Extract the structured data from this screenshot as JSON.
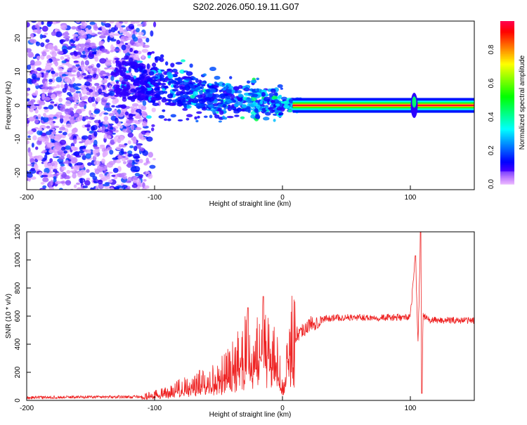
{
  "chart_data": [
    {
      "type": "heatmap",
      "title": "S202.2026.050.19.11.G07",
      "xlabel": "Height of straight line (km)",
      "ylabel": "Frequency (Hz)",
      "xlim": [
        -200,
        150
      ],
      "ylim": [
        -25,
        25
      ],
      "xticks": [
        "-200",
        "-100",
        "0",
        "100"
      ],
      "yticks": [
        "20",
        "10",
        "0",
        "-10",
        "-20"
      ],
      "colorbar": {
        "label": "Normalized spectral amplitude",
        "range": [
          0,
          1
        ],
        "ticks": [
          "0.0",
          "0.2",
          "0.4",
          "0.6",
          "0.8"
        ]
      },
      "ridge": {
        "x": [
          -125,
          -100,
          -75,
          -50,
          -25,
          -10,
          0,
          10,
          150
        ],
        "freq": [
          8,
          6,
          4,
          2.5,
          1.5,
          1,
          0.3,
          0,
          0
        ]
      },
      "noise_region_km": [
        -200,
        -105
      ],
      "artifact_km": 103
    },
    {
      "type": "line",
      "xlabel": "Height of straight line (km)",
      "ylabel": "SNR (10 * v/v)",
      "xlim": [
        -200,
        150
      ],
      "ylim": [
        0,
        1200
      ],
      "xticks": [
        "-200",
        "-100",
        "0",
        "100"
      ],
      "yticks": [
        "0",
        "200",
        "400",
        "600",
        "800",
        "1000",
        "1200"
      ],
      "color": "#ee2222",
      "x": [
        -200,
        -150,
        -110,
        -90,
        -75,
        -60,
        -45,
        -35,
        -27,
        -20,
        -15,
        -10,
        -5,
        0,
        5,
        15,
        25,
        35,
        50,
        80,
        95,
        100,
        104,
        106,
        108,
        109,
        110,
        115,
        150
      ],
      "y": [
        20,
        25,
        25,
        60,
        120,
        130,
        200,
        300,
        400,
        350,
        500,
        300,
        350,
        80,
        420,
        500,
        560,
        585,
        590,
        590,
        590,
        600,
        1030,
        400,
        1200,
        50,
        600,
        570,
        570
      ],
      "spikes": [
        {
          "x": -27,
          "y": 660
        },
        {
          "x": -15,
          "y": 740
        }
      ]
    }
  ]
}
